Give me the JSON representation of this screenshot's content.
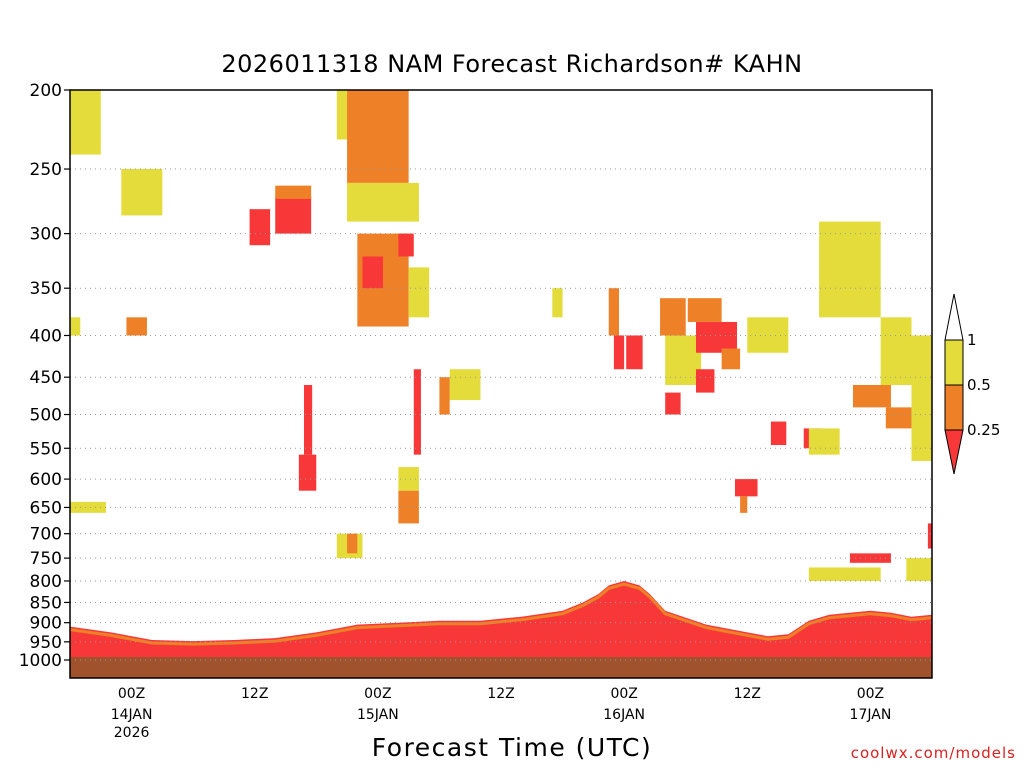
{
  "chart_data": {
    "type": "heatmap",
    "title": "2026011318 NAM Forecast Richardson# KAHN",
    "xlabel": "Forecast Time (UTC)",
    "ylabel": "",
    "credit": "coolwx.com/models",
    "y_scale": "log-pressure (inverted)",
    "ylim_hPa": [
      1000,
      200
    ],
    "y_ticks": [
      "200",
      "250",
      "300",
      "350",
      "400",
      "450",
      "500",
      "550",
      "600",
      "650",
      "700",
      "750",
      "800",
      "850",
      "900",
      "950",
      "1000"
    ],
    "x_ticks": [
      {
        "label": "00Z",
        "hour": 6,
        "sub": [
          "14JAN",
          "2026"
        ]
      },
      {
        "label": "12Z",
        "hour": 18,
        "sub": []
      },
      {
        "label": "00Z",
        "hour": 30,
        "sub": [
          "15JAN"
        ]
      },
      {
        "label": "12Z",
        "hour": 42,
        "sub": []
      },
      {
        "label": "00Z",
        "hour": 54,
        "sub": [
          "16JAN"
        ]
      },
      {
        "label": "12Z",
        "hour": 66,
        "sub": []
      },
      {
        "label": "00Z",
        "hour": 78,
        "sub": [
          "17JAN"
        ]
      }
    ],
    "xlim_hours": [
      0,
      84
    ],
    "grid": "dotted horizontal lines",
    "colorbar": {
      "ticks": [
        "1",
        "0.5",
        "0.25"
      ],
      "bins": [
        {
          "range": "> 1",
          "color": "#ffffff"
        },
        {
          "range": "0.5 - 1",
          "color": "#e4dc3a"
        },
        {
          "range": "0.25 - 0.5",
          "color": "#ee8028"
        },
        {
          "range": "< 0.25",
          "color": "#f83838"
        }
      ]
    },
    "colors": {
      "yellow": "#e4dc3a",
      "orange": "#ee8028",
      "red": "#f83838",
      "ground": "#a0522d"
    },
    "regions": [
      {
        "bin": "0.5 - 1",
        "t": [
          0,
          3
        ],
        "p": [
          200,
          240
        ]
      },
      {
        "bin": "0.5 - 1",
        "t": [
          5,
          9
        ],
        "p": [
          250,
          285
        ]
      },
      {
        "bin": "0.5 - 1",
        "t": [
          0,
          3.5
        ],
        "p": [
          640,
          660
        ]
      },
      {
        "bin": "0.5 - 1",
        "t": [
          0,
          1
        ],
        "p": [
          380,
          400
        ]
      },
      {
        "bin": "0.25 - 0.5",
        "t": [
          5.5,
          7.5
        ],
        "p": [
          380,
          400
        ]
      },
      {
        "bin": "< 0.25",
        "t": [
          17.5,
          19.5
        ],
        "p": [
          280,
          310
        ]
      },
      {
        "bin": "< 0.25",
        "t": [
          20,
          23.5
        ],
        "p": [
          270,
          300
        ]
      },
      {
        "bin": "0.25 - 0.5",
        "t": [
          20,
          23.5
        ],
        "p": [
          262,
          272
        ]
      },
      {
        "bin": "0.5 - 1",
        "t": [
          26,
          28
        ],
        "p": [
          200,
          230
        ]
      },
      {
        "bin": "0.25 - 0.5",
        "t": [
          27,
          33
        ],
        "p": [
          200,
          260
        ]
      },
      {
        "bin": "0.5 - 1",
        "t": [
          27,
          34
        ],
        "p": [
          260,
          290
        ]
      },
      {
        "bin": "0.25 - 0.5",
        "t": [
          28,
          33
        ],
        "p": [
          300,
          390
        ]
      },
      {
        "bin": "< 0.25",
        "t": [
          28.5,
          30.5
        ],
        "p": [
          320,
          350
        ]
      },
      {
        "bin": "< 0.25",
        "t": [
          32,
          33.5
        ],
        "p": [
          300,
          320
        ]
      },
      {
        "bin": "0.5 - 1",
        "t": [
          33,
          35
        ],
        "p": [
          330,
          380
        ]
      },
      {
        "bin": "< 0.25",
        "t": [
          33.5,
          34.2
        ],
        "p": [
          440,
          560
        ]
      },
      {
        "bin": "0.5 - 1",
        "t": [
          37,
          40
        ],
        "p": [
          440,
          480
        ]
      },
      {
        "bin": "0.25 - 0.5",
        "t": [
          36,
          37
        ],
        "p": [
          450,
          500
        ]
      },
      {
        "bin": "0.5 - 1",
        "t": [
          32,
          34
        ],
        "p": [
          580,
          620
        ]
      },
      {
        "bin": "0.25 - 0.5",
        "t": [
          32,
          34
        ],
        "p": [
          620,
          680
        ]
      },
      {
        "bin": "< 0.25",
        "t": [
          22.8,
          23.6
        ],
        "p": [
          460,
          560
        ]
      },
      {
        "bin": "< 0.25",
        "t": [
          22.3,
          24
        ],
        "p": [
          560,
          620
        ]
      },
      {
        "bin": "0.5 - 1",
        "t": [
          26,
          28.5
        ],
        "p": [
          700,
          750
        ]
      },
      {
        "bin": "0.25 - 0.5",
        "t": [
          27,
          28
        ],
        "p": [
          700,
          740
        ]
      },
      {
        "bin": "0.5 - 1",
        "t": [
          47,
          48
        ],
        "p": [
          350,
          380
        ]
      },
      {
        "bin": "0.25 - 0.5",
        "t": [
          52.5,
          53.5
        ],
        "p": [
          350,
          400
        ]
      },
      {
        "bin": "< 0.25",
        "t": [
          53,
          54
        ],
        "p": [
          400,
          440
        ]
      },
      {
        "bin": "< 0.25",
        "t": [
          54.2,
          55.8
        ],
        "p": [
          400,
          440
        ]
      },
      {
        "bin": "0.25 - 0.5",
        "t": [
          57.5,
          60
        ],
        "p": [
          360,
          400
        ]
      },
      {
        "bin": "0.5 - 1",
        "t": [
          58,
          61.5
        ],
        "p": [
          400,
          460
        ]
      },
      {
        "bin": "< 0.25",
        "t": [
          58,
          59.5
        ],
        "p": [
          470,
          500
        ]
      },
      {
        "bin": "< 0.25",
        "t": [
          61,
          62.8
        ],
        "p": [
          440,
          470
        ]
      },
      {
        "bin": "< 0.25",
        "t": [
          61,
          65
        ],
        "p": [
          385,
          420
        ]
      },
      {
        "bin": "0.25 - 0.5",
        "t": [
          60.2,
          63.5
        ],
        "p": [
          360,
          385
        ]
      },
      {
        "bin": "0.25 - 0.5",
        "t": [
          63.5,
          65.3
        ],
        "p": [
          415,
          440
        ]
      },
      {
        "bin": "0.5 - 1",
        "t": [
          66,
          70
        ],
        "p": [
          380,
          420
        ]
      },
      {
        "bin": "< 0.25",
        "t": [
          64.8,
          67
        ],
        "p": [
          600,
          630
        ]
      },
      {
        "bin": "0.25 - 0.5",
        "t": [
          65.3,
          66
        ],
        "p": [
          630,
          660
        ]
      },
      {
        "bin": "< 0.25",
        "t": [
          68.3,
          69.8
        ],
        "p": [
          510,
          545
        ]
      },
      {
        "bin": "0.5 - 1",
        "t": [
          73,
          79
        ],
        "p": [
          290,
          380
        ]
      },
      {
        "bin": "0.5 - 1",
        "t": [
          79,
          82
        ],
        "p": [
          380,
          460
        ]
      },
      {
        "bin": "0.25 - 0.5",
        "t": [
          76.3,
          80
        ],
        "p": [
          460,
          490
        ]
      },
      {
        "bin": "0.25 - 0.5",
        "t": [
          79.5,
          82
        ],
        "p": [
          490,
          520
        ]
      },
      {
        "bin": "< 0.25",
        "t": [
          71.5,
          73.3
        ],
        "p": [
          520,
          550
        ]
      },
      {
        "bin": "0.5 - 1",
        "t": [
          72,
          75
        ],
        "p": [
          520,
          560
        ]
      },
      {
        "bin": "0.5 - 1",
        "t": [
          82,
          84
        ],
        "p": [
          400,
          570
        ]
      },
      {
        "bin": "0.5 - 1",
        "t": [
          81.5,
          84
        ],
        "p": [
          750,
          800
        ]
      },
      {
        "bin": "< 0.25",
        "t": [
          83.6,
          84
        ],
        "p": [
          680,
          730
        ]
      },
      {
        "bin": "< 0.25",
        "t": [
          76,
          80
        ],
        "p": [
          740,
          760
        ]
      },
      {
        "bin": "0.5 - 1",
        "t": [
          72,
          79
        ],
        "p": [
          770,
          800
        ]
      }
    ],
    "boundary_layer": {
      "times": [
        0,
        4,
        8,
        12,
        16,
        20,
        24,
        28,
        32,
        36,
        40,
        44,
        48,
        50,
        51.5,
        52.5,
        54,
        55.5,
        56.5,
        58,
        62,
        64,
        66,
        68,
        70,
        72,
        74,
        76,
        78,
        80,
        82,
        84
      ],
      "top_hPa": [
        910,
        925,
        945,
        948,
        945,
        940,
        925,
        905,
        900,
        895,
        895,
        885,
        870,
        850,
        830,
        810,
        800,
        810,
        830,
        870,
        905,
        915,
        925,
        935,
        930,
        895,
        880,
        875,
        870,
        875,
        885,
        880
      ]
    }
  }
}
